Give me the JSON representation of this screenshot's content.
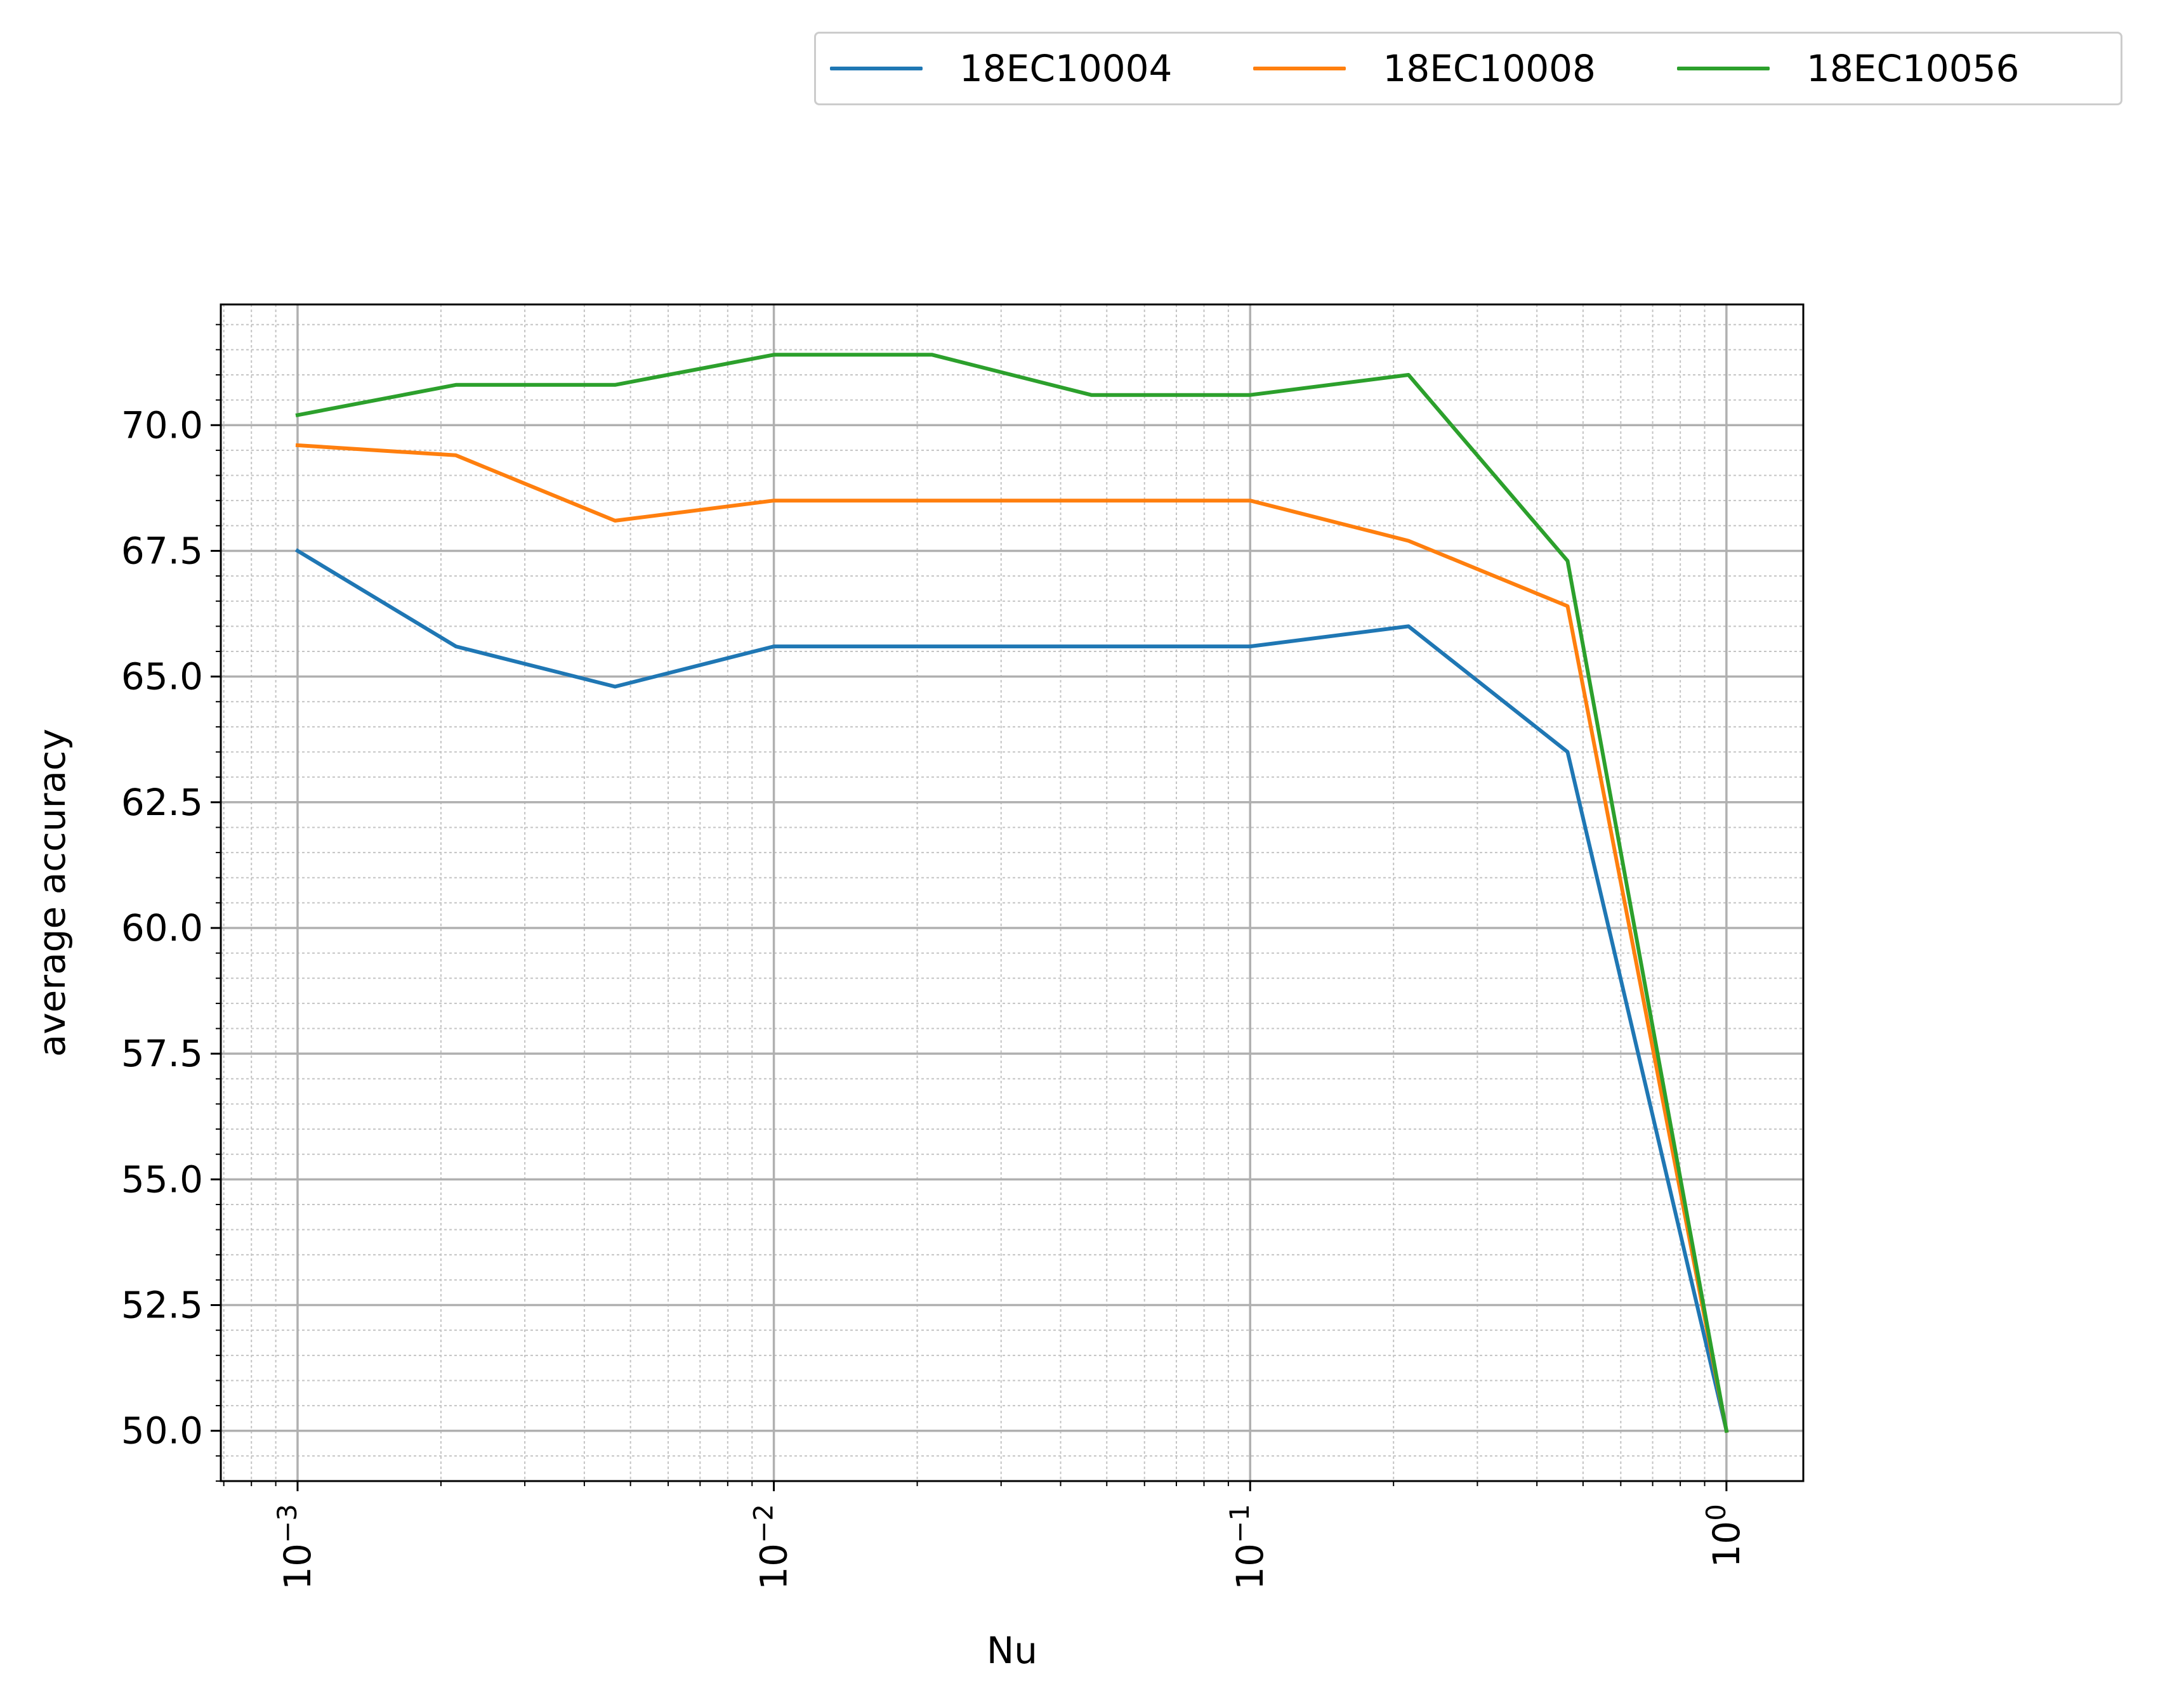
{
  "chart_data": {
    "type": "line",
    "xlabel": "Nu",
    "ylabel": "average accuracy",
    "xscale": "log",
    "xlim": [
      0.00069,
      1.45
    ],
    "ylim": [
      49.0,
      72.4
    ],
    "grid": true,
    "minor_grid": true,
    "legend_position": "top-right, above plot",
    "x_ticks": [
      {
        "value": 0.001,
        "base": "10",
        "exp": "−3"
      },
      {
        "value": 0.01,
        "base": "10",
        "exp": "−2"
      },
      {
        "value": 0.1,
        "base": "10",
        "exp": "−1"
      },
      {
        "value": 1,
        "base": "10",
        "exp": "0"
      }
    ],
    "y_ticks": [
      "50.0",
      "52.5",
      "55.0",
      "57.5",
      "60.0",
      "62.5",
      "65.0",
      "67.5",
      "70.0"
    ],
    "x": [
      0.001,
      0.00215,
      0.00464,
      0.01,
      0.0215,
      0.0464,
      0.1,
      0.215,
      0.464,
      1.0
    ],
    "series": [
      {
        "name": "18EC10004",
        "color": "#1f77b4",
        "values": [
          67.5,
          65.6,
          64.8,
          65.6,
          65.6,
          65.6,
          65.6,
          66.0,
          63.5,
          50.0
        ]
      },
      {
        "name": "18EC10008",
        "color": "#ff7f0e",
        "values": [
          69.6,
          69.4,
          68.1,
          68.5,
          68.5,
          68.5,
          68.5,
          67.7,
          66.4,
          50.0
        ]
      },
      {
        "name": "18EC10056",
        "color": "#2ca02c",
        "values": [
          70.2,
          70.8,
          70.8,
          71.4,
          71.4,
          70.6,
          70.6,
          71.0,
          67.3,
          50.0
        ]
      }
    ]
  }
}
